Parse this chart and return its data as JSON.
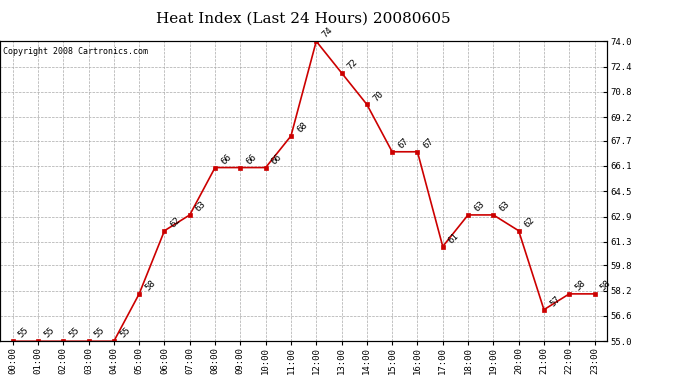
{
  "title": "Heat Index (Last 24 Hours) 20080605",
  "copyright": "Copyright 2008 Cartronics.com",
  "hours": [
    "00:00",
    "01:00",
    "02:00",
    "03:00",
    "04:00",
    "05:00",
    "06:00",
    "07:00",
    "08:00",
    "09:00",
    "10:00",
    "11:00",
    "12:00",
    "13:00",
    "14:00",
    "15:00",
    "16:00",
    "17:00",
    "18:00",
    "19:00",
    "20:00",
    "21:00",
    "22:00",
    "23:00"
  ],
  "values": [
    55,
    55,
    55,
    55,
    55,
    58,
    62,
    63,
    66,
    66,
    66,
    68,
    74,
    72,
    70,
    67,
    67,
    61,
    63,
    63,
    62,
    57,
    58,
    58
  ],
  "line_color": "#cc0000",
  "marker_color": "#cc0000",
  "bg_color": "#ffffff",
  "grid_color": "#aaaaaa",
  "ylim_min": 55.0,
  "ylim_max": 74.0,
  "ytick_values": [
    55.0,
    56.6,
    58.2,
    59.8,
    61.3,
    62.9,
    64.5,
    66.1,
    67.7,
    69.2,
    70.8,
    72.4,
    74.0
  ],
  "title_fontsize": 11,
  "label_fontsize": 6.5,
  "copyright_fontsize": 6,
  "tick_fontsize": 6.5
}
